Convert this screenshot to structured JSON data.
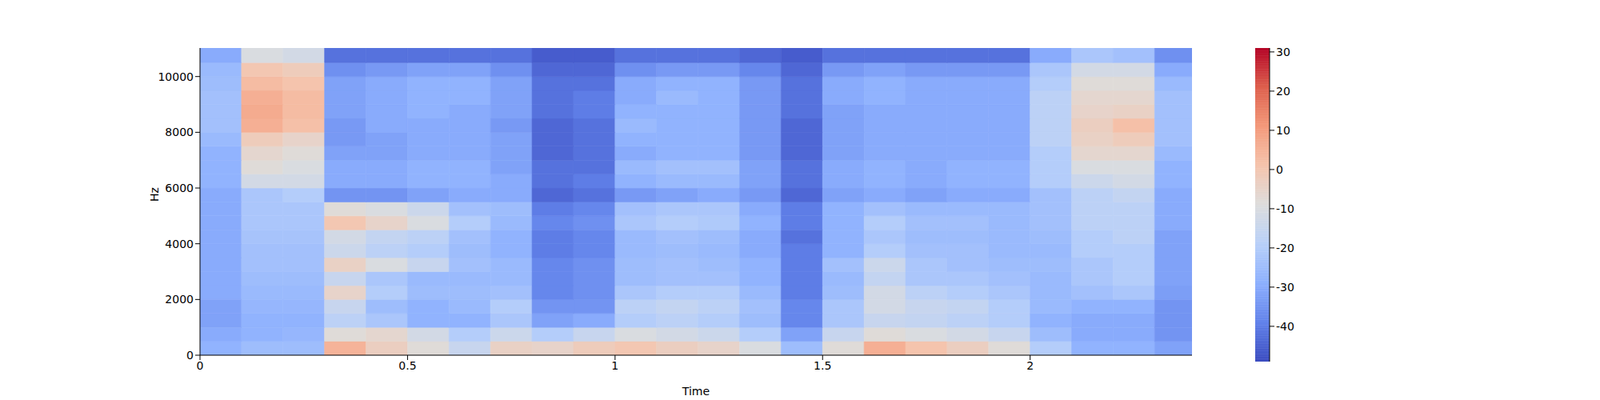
{
  "chart_data": {
    "type": "heatmap",
    "x_label": "Time",
    "y_label": "Hz",
    "xlim": [
      0,
      2.39
    ],
    "ylim": [
      0,
      11025
    ],
    "xticks": [
      0,
      0.5,
      1,
      1.5,
      2
    ],
    "yticks": [
      0,
      2000,
      4000,
      6000,
      8000,
      10000
    ],
    "x_bins": [
      0,
      0.1,
      0.2,
      0.3,
      0.4,
      0.5,
      0.6,
      0.7,
      0.8,
      0.9,
      1.0,
      1.1,
      1.2,
      1.3,
      1.4,
      1.5,
      1.6,
      1.7,
      1.8,
      1.9,
      2.0,
      2.1,
      2.2,
      2.3,
      2.39
    ],
    "y_bins": [
      0,
      500,
      1000,
      1500,
      2000,
      2500,
      3000,
      3500,
      4000,
      4500,
      5000,
      5500,
      6000,
      6500,
      7000,
      7500,
      8000,
      8500,
      9000,
      9500,
      10000,
      10500,
      11025
    ],
    "cells": [
      [
        -28,
        -25,
        -25,
        5,
        -3,
        -8,
        -15,
        -4,
        -5,
        -2,
        0,
        -3,
        -5,
        -10,
        -25,
        -8,
        6,
        1,
        -3,
        -8,
        -20,
        -28,
        -28,
        -32
      ],
      [
        -30,
        -28,
        -27,
        -8,
        -6,
        -12,
        -20,
        -14,
        -20,
        -15,
        -10,
        -12,
        -14,
        -20,
        -32,
        -15,
        -8,
        -10,
        -12,
        -15,
        -25,
        -30,
        -30,
        -35
      ],
      [
        -32,
        -28,
        -28,
        -18,
        -22,
        -28,
        -28,
        -22,
        -32,
        -30,
        -20,
        -18,
        -20,
        -25,
        -38,
        -22,
        -15,
        -16,
        -18,
        -20,
        -28,
        -30,
        -30,
        -35
      ],
      [
        -32,
        -27,
        -27,
        -15,
        -25,
        -28,
        -26,
        -20,
        -35,
        -35,
        -18,
        -16,
        -18,
        -24,
        -38,
        -22,
        -12,
        -15,
        -16,
        -20,
        -26,
        -28,
        -28,
        -35
      ],
      [
        -30,
        -26,
        -26,
        -5,
        -20,
        -25,
        -25,
        -24,
        -38,
        -36,
        -22,
        -20,
        -20,
        -26,
        -40,
        -25,
        -12,
        -18,
        -20,
        -22,
        -26,
        -24,
        -22,
        -33
      ],
      [
        -30,
        -25,
        -25,
        -15,
        -22,
        -26,
        -26,
        -26,
        -38,
        -36,
        -25,
        -24,
        -24,
        -28,
        -40,
        -26,
        -16,
        -22,
        -22,
        -24,
        -26,
        -22,
        -20,
        -32
      ],
      [
        -30,
        -24,
        -24,
        -4,
        -10,
        -15,
        -24,
        -26,
        -38,
        -36,
        -25,
        -24,
        -25,
        -28,
        -40,
        -24,
        -14,
        -22,
        -24,
        -25,
        -25,
        -22,
        -20,
        -32
      ],
      [
        -30,
        -24,
        -24,
        -14,
        -18,
        -20,
        -25,
        -28,
        -40,
        -38,
        -26,
        -25,
        -26,
        -30,
        -40,
        -28,
        -20,
        -24,
        -24,
        -26,
        -26,
        -20,
        -20,
        -32
      ],
      [
        -30,
        -23,
        -23,
        -12,
        -16,
        -18,
        -24,
        -28,
        -40,
        -38,
        -26,
        -24,
        -25,
        -30,
        -42,
        -28,
        -22,
        -25,
        -25,
        -26,
        -25,
        -20,
        -18,
        -32
      ],
      [
        -30,
        -22,
        -22,
        0,
        -5,
        -10,
        -20,
        -26,
        -38,
        -36,
        -22,
        -20,
        -21,
        -28,
        -40,
        -28,
        -20,
        -24,
        -24,
        -26,
        -24,
        -18,
        -18,
        -30
      ],
      [
        -30,
        -22,
        -22,
        -8,
        -10,
        -14,
        -24,
        -25,
        -40,
        -38,
        -24,
        -22,
        -22,
        -30,
        -40,
        -28,
        -24,
        -26,
        -26,
        -26,
        -24,
        -18,
        -18,
        -30
      ],
      [
        -30,
        -22,
        -20,
        -35,
        -35,
        -32,
        -30,
        -30,
        -44,
        -42,
        -34,
        -32,
        -30,
        -34,
        -44,
        -32,
        -30,
        -32,
        -30,
        -30,
        -24,
        -18,
        -16,
        -30
      ],
      [
        -28,
        -12,
        -12,
        -30,
        -30,
        -28,
        -28,
        -30,
        -42,
        -40,
        -28,
        -26,
        -26,
        -32,
        -42,
        -30,
        -28,
        -30,
        -28,
        -28,
        -20,
        -14,
        -12,
        -28
      ],
      [
        -28,
        -8,
        -10,
        -30,
        -30,
        -28,
        -28,
        -32,
        -42,
        -42,
        -26,
        -24,
        -24,
        -32,
        -42,
        -30,
        -28,
        -30,
        -28,
        -28,
        -20,
        -10,
        -10,
        -28
      ],
      [
        -28,
        -6,
        -8,
        -32,
        -32,
        -30,
        -30,
        -32,
        -44,
        -42,
        -30,
        -28,
        -28,
        -34,
        -44,
        -32,
        -30,
        -30,
        -30,
        -30,
        -20,
        -6,
        -6,
        -26
      ],
      [
        -26,
        -2,
        -5,
        -34,
        -32,
        -30,
        -30,
        -32,
        -44,
        -42,
        -28,
        -28,
        -28,
        -34,
        -44,
        -32,
        -30,
        -30,
        -30,
        -30,
        -18,
        -4,
        -2,
        -24
      ],
      [
        -24,
        6,
        2,
        -34,
        -30,
        -30,
        -30,
        -34,
        -44,
        -42,
        -26,
        -28,
        -28,
        -34,
        -44,
        -32,
        -30,
        -30,
        -30,
        -30,
        -18,
        -3,
        2,
        -24
      ],
      [
        -24,
        7,
        3,
        -32,
        -30,
        -28,
        -30,
        -32,
        -42,
        -40,
        -28,
        -28,
        -28,
        -34,
        -42,
        -32,
        -30,
        -30,
        -30,
        -30,
        -18,
        -5,
        -4,
        -24
      ],
      [
        -24,
        6,
        3,
        -32,
        -30,
        -28,
        -28,
        -32,
        -42,
        -40,
        -30,
        -26,
        -28,
        -34,
        -42,
        -30,
        -28,
        -30,
        -30,
        -30,
        -18,
        -6,
        -6,
        -24
      ],
      [
        -25,
        3,
        1,
        -32,
        -30,
        -28,
        -28,
        -32,
        -42,
        -42,
        -30,
        -28,
        -28,
        -34,
        -42,
        -30,
        -28,
        -30,
        -30,
        -30,
        -20,
        -8,
        -8,
        -26
      ],
      [
        -26,
        0,
        -2,
        -36,
        -34,
        -32,
        -32,
        -36,
        -44,
        -44,
        -36,
        -34,
        -34,
        -38,
        -44,
        -34,
        -32,
        -34,
        -34,
        -34,
        -22,
        -12,
        -12,
        -30
      ],
      [
        -30,
        -10,
        -12,
        -42,
        -42,
        -42,
        -42,
        -42,
        -46,
        -46,
        -42,
        -42,
        -42,
        -44,
        -46,
        -42,
        -42,
        -42,
        -42,
        -42,
        -30,
        -22,
        -24,
        -36
      ]
    ],
    "colorbar": {
      "range": [
        -49,
        31
      ],
      "ticks": [
        -40,
        -30,
        -20,
        -10,
        0,
        10,
        20,
        30
      ]
    }
  }
}
